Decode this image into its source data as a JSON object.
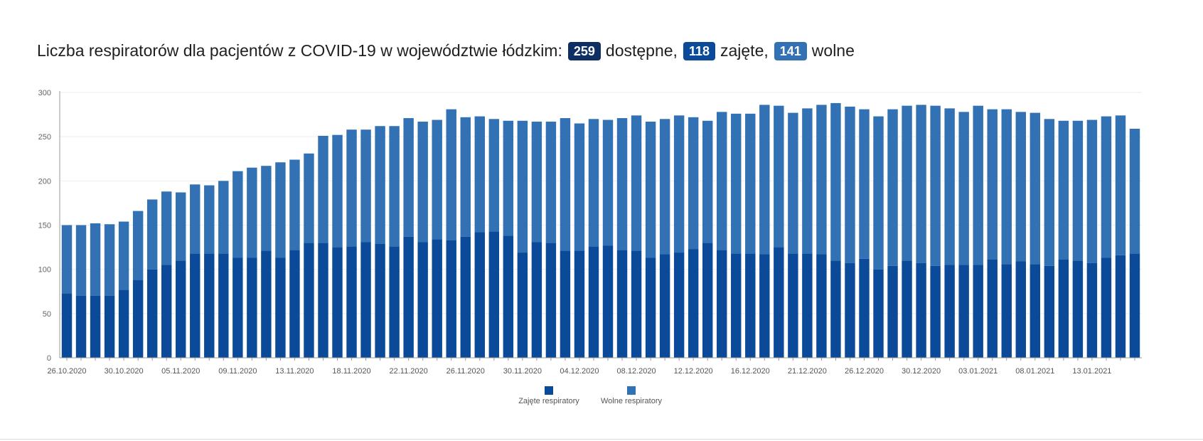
{
  "header": {
    "title_prefix": "Liczba respiratorów dla pacjentów z COVID-19 w województwie łódzkim:",
    "available_value": "259",
    "available_label": "dostępne,",
    "occupied_value": "118",
    "occupied_label": "zajęte,",
    "free_value": "141",
    "free_label": "wolne"
  },
  "chart_data": {
    "type": "bar",
    "stacked": true,
    "ylim": [
      0,
      300
    ],
    "yticks": [
      "0",
      "50",
      "100",
      "150",
      "200",
      "250",
      "300"
    ],
    "x_tick_labels": [
      {
        "index": 0,
        "label": "26.10.2020"
      },
      {
        "index": 4,
        "label": "30.10.2020"
      },
      {
        "index": 8,
        "label": "05.11.2020"
      },
      {
        "index": 12,
        "label": "09.11.2020"
      },
      {
        "index": 16,
        "label": "13.11.2020"
      },
      {
        "index": 20,
        "label": "18.11.2020"
      },
      {
        "index": 24,
        "label": "22.11.2020"
      },
      {
        "index": 28,
        "label": "26.11.2020"
      },
      {
        "index": 32,
        "label": "30.11.2020"
      },
      {
        "index": 36,
        "label": "04.12.2020"
      },
      {
        "index": 40,
        "label": "08.12.2020"
      },
      {
        "index": 44,
        "label": "12.12.2020"
      },
      {
        "index": 48,
        "label": "16.12.2020"
      },
      {
        "index": 52,
        "label": "21.12.2020"
      },
      {
        "index": 56,
        "label": "26.12.2020"
      },
      {
        "index": 60,
        "label": "30.12.2020"
      },
      {
        "index": 64,
        "label": "03.01.2021"
      },
      {
        "index": 68,
        "label": "08.01.2021"
      },
      {
        "index": 72,
        "label": "13.01.2021"
      }
    ],
    "grid": "horizontal",
    "legend_position": "bottom-center",
    "colors": {
      "occupied": "#0b4a99",
      "free": "#3271b4",
      "axis": "#999999",
      "grid": "#eeeeee"
    },
    "series": [
      {
        "name": "Zajęte respiratory",
        "values": [
          73,
          70,
          70,
          70,
          77,
          88,
          100,
          105,
          110,
          118,
          118,
          118,
          113,
          113,
          121,
          113,
          122,
          130,
          130,
          125,
          126,
          131,
          129,
          126,
          137,
          131,
          134,
          133,
          137,
          142,
          143,
          138,
          119,
          131,
          130,
          121,
          121,
          126,
          127,
          122,
          121,
          113,
          117,
          119,
          123,
          130,
          122,
          118,
          118,
          117,
          125,
          118,
          118,
          117,
          110,
          107,
          112,
          100,
          104,
          110,
          107,
          104,
          105,
          105,
          105,
          111,
          106,
          109,
          106,
          104,
          111,
          110,
          107,
          113,
          116,
          118
        ]
      },
      {
        "name": "Wolne respiratory",
        "values": [
          77,
          80,
          82,
          81,
          77,
          78,
          79,
          83,
          77,
          78,
          77,
          82,
          98,
          102,
          96,
          108,
          102,
          101,
          121,
          127,
          132,
          127,
          133,
          136,
          134,
          136,
          135,
          148,
          135,
          131,
          127,
          130,
          149,
          136,
          137,
          150,
          144,
          144,
          142,
          149,
          153,
          154,
          153,
          155,
          149,
          138,
          156,
          158,
          158,
          169,
          160,
          159,
          164,
          169,
          178,
          177,
          169,
          173,
          177,
          175,
          179,
          181,
          177,
          173,
          180,
          170,
          175,
          169,
          171,
          166,
          157,
          158,
          162,
          160,
          158,
          141
        ]
      }
    ]
  }
}
